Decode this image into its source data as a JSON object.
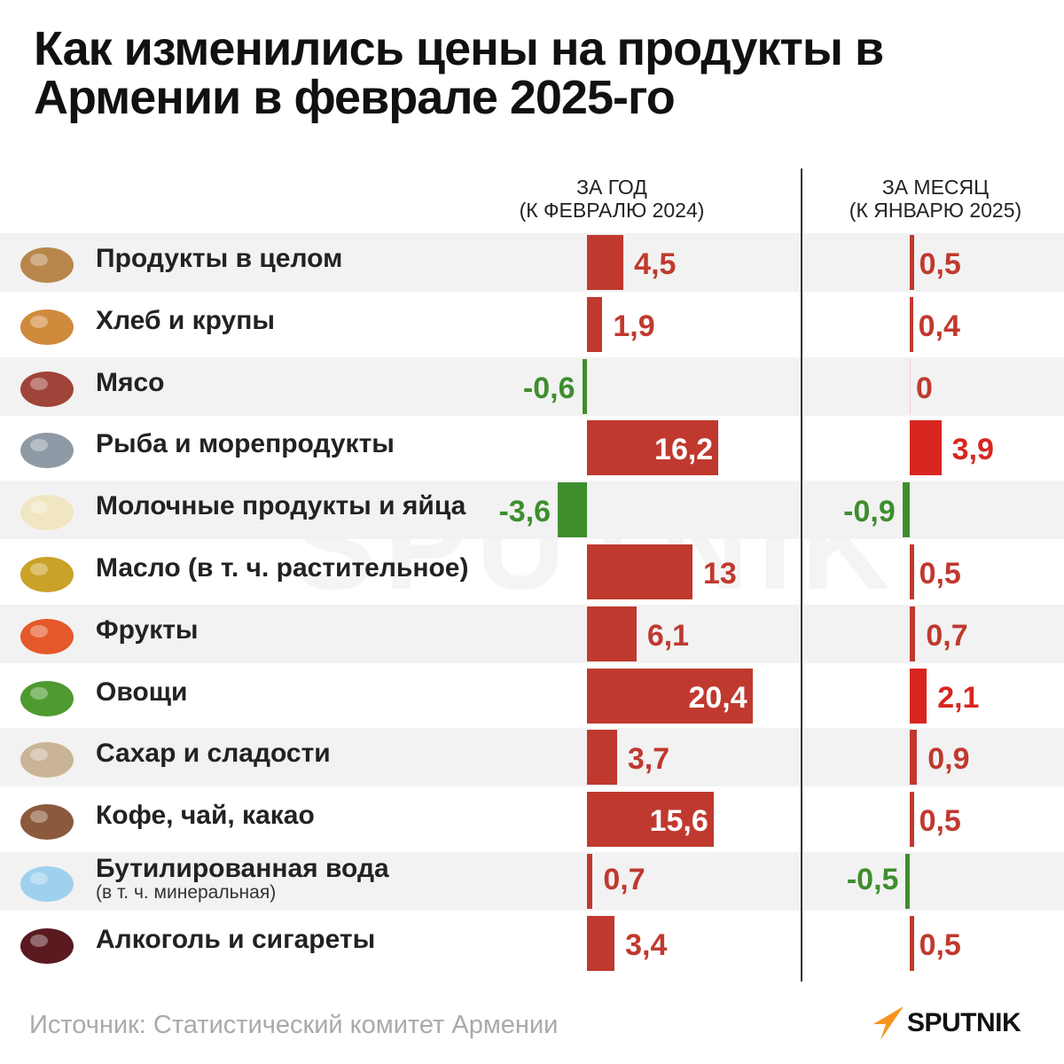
{
  "title_line1": "Как изменились цены на продукты в",
  "title_line2": "Армении в феврале 2025-го",
  "columns": {
    "year": {
      "line1": "ЗА ГОД",
      "line2": "(К ФЕВРАЛЮ 2024)"
    },
    "month": {
      "line1": "ЗА МЕСЯЦ",
      "line2": "(К ЯНВАРЮ 2025)"
    }
  },
  "colors": {
    "increase": "#c0392f",
    "increase_highlight": "#d8261e",
    "decrease": "#3e8e2e",
    "stripe": "#f2f2f2"
  },
  "chart_data": {
    "type": "bar",
    "orientation": "horizontal",
    "categories": [
      "Продукты в целом",
      "Хлеб и крупы",
      "Мясо",
      "Рыба и морепродукты",
      "Молочные продукты и яйца",
      "Масло (в т. ч. растительное)",
      "Фрукты",
      "Овощи",
      "Сахар и сладости",
      "Кофе, чай, какао",
      "Бутилированная вода",
      "Алкоголь и сигареты"
    ],
    "subtitles": [
      "",
      "",
      "",
      "",
      "",
      "",
      "",
      "",
      "",
      "",
      "(в т. ч. минеральная)",
      ""
    ],
    "icons": [
      "basket-icon",
      "bread-icon",
      "meat-icon",
      "fish-icon",
      "dairy-icon",
      "oil-bottle-icon",
      "fruits-icon",
      "vegetables-icon",
      "sugar-sacks-icon",
      "coffee-cup-icon",
      "water-bottles-icon",
      "wine-cigarettes-icon"
    ],
    "series": [
      {
        "name": "ЗА ГОД (К ФЕВРАЛЮ 2024)",
        "values": [
          4.5,
          1.9,
          -0.6,
          16.2,
          -3.6,
          13,
          6.1,
          20.4,
          3.7,
          15.6,
          0.7,
          3.4
        ],
        "labels": [
          "4,5",
          "1,9",
          "-0,6",
          "16,2",
          "-3,6",
          "13",
          "6,1",
          "20,4",
          "3,7",
          "15,6",
          "0,7",
          "3,4"
        ]
      },
      {
        "name": "ЗА МЕСЯЦ (К ЯНВАРЮ 2025)",
        "values": [
          0.5,
          0.4,
          0,
          3.9,
          -0.9,
          0.5,
          0.7,
          2.1,
          0.9,
          0.5,
          -0.5,
          0.5
        ],
        "labels": [
          "0,5",
          "0,4",
          "0",
          "3,9",
          "-0,9",
          "0,5",
          "0,7",
          "2,1",
          "0,9",
          "0,5",
          "-0,5",
          "0,5"
        ]
      }
    ],
    "unit": "%"
  },
  "source": "Источник: Статистический комитет Армении",
  "logo": "SPUTNIK",
  "watermark": "SPUTNIK"
}
